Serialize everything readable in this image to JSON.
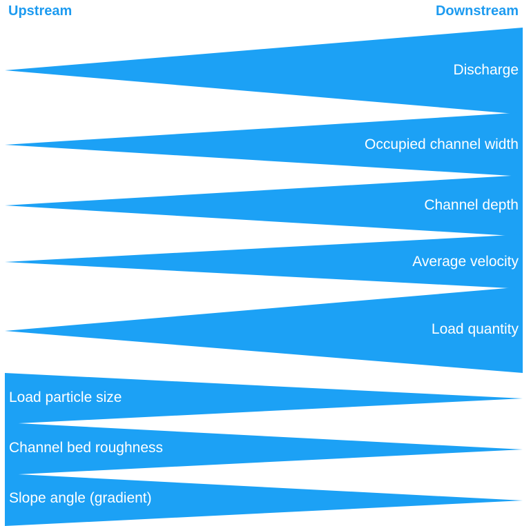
{
  "headings": {
    "upstream": "Upstream",
    "downstream": "Downstream"
  },
  "wedges": [
    {
      "label": "Discharge",
      "trend": "increase"
    },
    {
      "label": "Occupied channel width",
      "trend": "increase"
    },
    {
      "label": "Channel depth",
      "trend": "increase"
    },
    {
      "label": "Average velocity",
      "trend": "increase"
    },
    {
      "label": "Load quantity",
      "trend": "increase"
    },
    {
      "label": "Load particle size",
      "trend": "decrease"
    },
    {
      "label": "Channel bed roughness",
      "trend": "decrease"
    },
    {
      "label": "Slope angle (gradient)",
      "trend": "decrease"
    }
  ],
  "colors": {
    "wedge": "#1ca1f5",
    "heading": "#1d9bf0",
    "label": "#ffffff"
  }
}
